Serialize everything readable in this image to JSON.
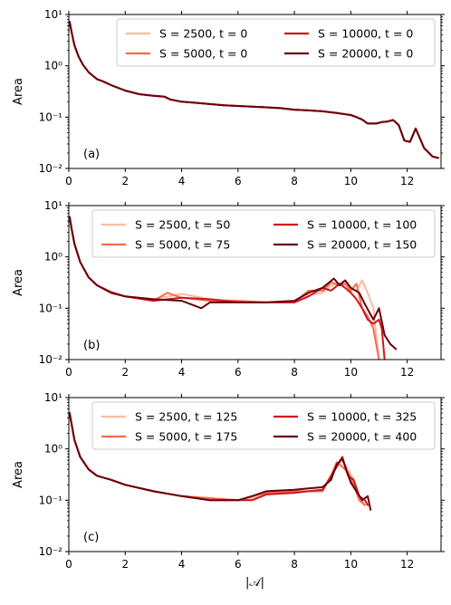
{
  "chart_data": [
    {
      "type": "line",
      "panel_label": "(a)",
      "ylabel": "Area",
      "xlabel": "",
      "yscale": "log",
      "xlim": [
        0,
        13.2
      ],
      "ylim": [
        0.01,
        10
      ],
      "xticks": [
        0,
        2,
        4,
        6,
        8,
        10,
        12
      ],
      "xtick_labels": [
        "0",
        "2",
        "4",
        "6",
        "8",
        "10",
        "12"
      ],
      "ytick_labels": [
        "10⁻²",
        "10⁻¹",
        "10⁰",
        "10¹"
      ],
      "legend": "top-right, 2 columns",
      "series": [
        {
          "name": "S = 2500, t = 0",
          "color": "#fcbba1",
          "x": [
            0.03,
            0.1,
            0.2,
            0.35,
            0.5,
            0.7,
            1.0,
            1.2,
            1.5,
            2.0,
            2.5,
            3.0,
            3.4,
            3.6,
            4.0,
            4.5,
            5.0,
            5.5,
            6.0,
            6.5,
            7.0,
            7.5,
            8.0,
            8.5,
            9.0,
            9.5,
            10.0,
            10.2,
            10.4,
            10.6,
            10.9,
            11.1,
            11.3,
            11.5,
            11.7,
            11.9,
            12.1,
            12.3,
            12.6,
            12.9,
            13.1
          ],
          "y": [
            7.2,
            4.5,
            2.5,
            1.5,
            1.05,
            0.75,
            0.55,
            0.5,
            0.42,
            0.33,
            0.28,
            0.26,
            0.25,
            0.22,
            0.2,
            0.19,
            0.18,
            0.17,
            0.165,
            0.16,
            0.155,
            0.15,
            0.14,
            0.135,
            0.13,
            0.12,
            0.11,
            0.1,
            0.09,
            0.075,
            0.075,
            0.08,
            0.082,
            0.088,
            0.07,
            0.035,
            0.033,
            0.06,
            0.025,
            0.017,
            0.016
          ]
        },
        {
          "name": "S = 5000, t = 0",
          "color": "#fb6a4a",
          "x": [
            0.03,
            0.1,
            0.2,
            0.35,
            0.5,
            0.7,
            1.0,
            1.2,
            1.5,
            2.0,
            2.5,
            3.0,
            3.4,
            3.6,
            4.0,
            4.5,
            5.0,
            5.5,
            6.0,
            6.5,
            7.0,
            7.5,
            8.0,
            8.5,
            9.0,
            9.5,
            10.0,
            10.2,
            10.4,
            10.6,
            10.9,
            11.1,
            11.3,
            11.5,
            11.7,
            11.9,
            12.1,
            12.3,
            12.6,
            12.9,
            13.1
          ],
          "y": [
            7.2,
            4.5,
            2.5,
            1.5,
            1.05,
            0.75,
            0.55,
            0.5,
            0.42,
            0.33,
            0.28,
            0.26,
            0.25,
            0.22,
            0.2,
            0.19,
            0.18,
            0.17,
            0.165,
            0.16,
            0.155,
            0.15,
            0.14,
            0.135,
            0.13,
            0.12,
            0.11,
            0.1,
            0.09,
            0.075,
            0.075,
            0.08,
            0.082,
            0.088,
            0.07,
            0.035,
            0.033,
            0.06,
            0.025,
            0.017,
            0.016
          ]
        },
        {
          "name": "S = 10000, t = 0",
          "color": "#cb181d",
          "x": [
            0.03,
            0.1,
            0.2,
            0.35,
            0.5,
            0.7,
            1.0,
            1.2,
            1.5,
            2.0,
            2.5,
            3.0,
            3.4,
            3.6,
            4.0,
            4.5,
            5.0,
            5.5,
            6.0,
            6.5,
            7.0,
            7.5,
            8.0,
            8.5,
            9.0,
            9.5,
            10.0,
            10.2,
            10.4,
            10.6,
            10.9,
            11.1,
            11.3,
            11.5,
            11.7,
            11.9,
            12.1,
            12.3,
            12.6,
            12.9,
            13.1
          ],
          "y": [
            7.2,
            4.5,
            2.5,
            1.5,
            1.05,
            0.75,
            0.55,
            0.5,
            0.42,
            0.33,
            0.28,
            0.26,
            0.25,
            0.22,
            0.2,
            0.19,
            0.18,
            0.17,
            0.165,
            0.16,
            0.155,
            0.15,
            0.14,
            0.135,
            0.13,
            0.12,
            0.11,
            0.1,
            0.09,
            0.075,
            0.075,
            0.08,
            0.082,
            0.088,
            0.07,
            0.035,
            0.033,
            0.06,
            0.025,
            0.017,
            0.016
          ]
        },
        {
          "name": "S = 20000, t = 0",
          "color": "#67000d",
          "x": [
            0.03,
            0.1,
            0.2,
            0.35,
            0.5,
            0.7,
            1.0,
            1.2,
            1.5,
            2.0,
            2.5,
            3.0,
            3.4,
            3.6,
            4.0,
            4.5,
            5.0,
            5.5,
            6.0,
            6.5,
            7.0,
            7.5,
            8.0,
            8.5,
            9.0,
            9.5,
            10.0,
            10.2,
            10.4,
            10.6,
            10.9,
            11.1,
            11.3,
            11.5,
            11.7,
            11.9,
            12.1,
            12.3,
            12.6,
            12.9,
            13.1
          ],
          "y": [
            7.2,
            4.5,
            2.5,
            1.5,
            1.05,
            0.75,
            0.55,
            0.5,
            0.42,
            0.33,
            0.28,
            0.26,
            0.25,
            0.22,
            0.2,
            0.19,
            0.18,
            0.17,
            0.165,
            0.16,
            0.155,
            0.15,
            0.14,
            0.135,
            0.13,
            0.12,
            0.11,
            0.1,
            0.09,
            0.075,
            0.075,
            0.08,
            0.082,
            0.088,
            0.07,
            0.035,
            0.033,
            0.06,
            0.025,
            0.017,
            0.016
          ]
        }
      ]
    },
    {
      "type": "line",
      "panel_label": "(b)",
      "ylabel": "Area",
      "xlabel": "",
      "yscale": "log",
      "xlim": [
        0,
        13.2
      ],
      "ylim": [
        0.01,
        10
      ],
      "xticks": [
        0,
        2,
        4,
        6,
        8,
        10,
        12
      ],
      "xtick_labels": [
        "0",
        "2",
        "4",
        "6",
        "8",
        "10",
        "12"
      ],
      "ytick_labels": [
        "10⁻²",
        "10⁻¹",
        "10⁰",
        "10¹"
      ],
      "legend": "top-right, 2 columns",
      "series": [
        {
          "name": "S = 2500, t = 50",
          "color": "#fcbba1",
          "x": [
            0.03,
            0.1,
            0.2,
            0.4,
            0.7,
            1.0,
            1.5,
            2.0,
            3.0,
            4.0,
            5.0,
            6.0,
            7.0,
            8.0,
            8.5,
            9.0,
            9.3,
            9.6,
            9.8,
            10.0,
            10.2,
            10.4,
            10.6,
            10.8,
            10.9,
            11.0
          ],
          "y": [
            6.0,
            3.5,
            1.8,
            0.8,
            0.4,
            0.28,
            0.2,
            0.17,
            0.15,
            0.19,
            0.15,
            0.14,
            0.13,
            0.13,
            0.18,
            0.2,
            0.28,
            0.3,
            0.35,
            0.25,
            0.22,
            0.35,
            0.2,
            0.1,
            0.03,
            0.01
          ]
        },
        {
          "name": "S = 5000, t = 75",
          "color": "#fb6a4a",
          "x": [
            0.03,
            0.1,
            0.2,
            0.4,
            0.7,
            1.0,
            1.5,
            2.0,
            3.0,
            3.5,
            4.0,
            5.0,
            6.0,
            7.0,
            8.0,
            8.5,
            9.0,
            9.3,
            9.6,
            9.8,
            10.0,
            10.2,
            10.4,
            10.6,
            10.8,
            11.0
          ],
          "y": [
            6.0,
            3.5,
            1.8,
            0.8,
            0.4,
            0.28,
            0.21,
            0.17,
            0.14,
            0.2,
            0.16,
            0.14,
            0.14,
            0.13,
            0.13,
            0.22,
            0.22,
            0.32,
            0.28,
            0.3,
            0.22,
            0.3,
            0.1,
            0.07,
            0.04,
            0.01
          ]
        },
        {
          "name": "S = 10000, t = 100",
          "color": "#cb181d",
          "x": [
            0.03,
            0.1,
            0.2,
            0.4,
            0.7,
            1.0,
            1.5,
            2.0,
            3.0,
            4.0,
            5.0,
            6.0,
            7.0,
            8.0,
            8.5,
            9.0,
            9.3,
            9.6,
            9.8,
            10.0,
            10.2,
            10.4,
            10.6,
            10.8,
            11.0,
            11.1,
            11.2
          ],
          "y": [
            6.0,
            3.5,
            1.8,
            0.8,
            0.4,
            0.28,
            0.2,
            0.17,
            0.14,
            0.16,
            0.15,
            0.13,
            0.13,
            0.13,
            0.17,
            0.25,
            0.22,
            0.3,
            0.25,
            0.2,
            0.15,
            0.1,
            0.06,
            0.05,
            0.06,
            0.04,
            0.01
          ]
        },
        {
          "name": "S = 20000, t = 150",
          "color": "#67000d",
          "x": [
            0.03,
            0.1,
            0.2,
            0.4,
            0.7,
            1.0,
            1.5,
            2.0,
            3.0,
            4.0,
            4.7,
            5.0,
            6.0,
            7.0,
            8.0,
            8.5,
            9.0,
            9.4,
            9.6,
            9.8,
            10.0,
            10.3,
            10.5,
            10.8,
            11.0,
            11.2,
            11.4,
            11.6
          ],
          "y": [
            6.0,
            3.5,
            1.8,
            0.8,
            0.4,
            0.28,
            0.2,
            0.17,
            0.15,
            0.14,
            0.1,
            0.13,
            0.13,
            0.13,
            0.14,
            0.2,
            0.25,
            0.38,
            0.28,
            0.35,
            0.25,
            0.2,
            0.12,
            0.06,
            0.1,
            0.03,
            0.02,
            0.016
          ]
        }
      ]
    },
    {
      "type": "line",
      "panel_label": "(c)",
      "ylabel": "Area",
      "xlabel": "|𝒜|",
      "yscale": "log",
      "xlim": [
        0,
        13.2
      ],
      "ylim": [
        0.01,
        10
      ],
      "xticks": [
        0,
        2,
        4,
        6,
        8,
        10,
        12
      ],
      "xtick_labels": [
        "0",
        "2",
        "4",
        "6",
        "8",
        "10",
        "12"
      ],
      "ytick_labels": [
        "10⁻²",
        "10⁻¹",
        "10⁰",
        "10¹"
      ],
      "legend": "top-right, 2 columns",
      "series": [
        {
          "name": "S = 2500, t = 125",
          "color": "#fcbba1",
          "x": [
            0.03,
            0.1,
            0.2,
            0.4,
            0.7,
            1.0,
            1.5,
            2.0,
            3.0,
            4.0,
            5.0,
            6.0,
            6.5,
            7.0,
            8.0,
            8.5,
            9.0,
            9.3,
            9.5,
            9.7,
            9.9,
            10.1,
            10.3,
            10.5
          ],
          "y": [
            5.0,
            3.0,
            1.5,
            0.7,
            0.4,
            0.3,
            0.25,
            0.2,
            0.15,
            0.12,
            0.11,
            0.1,
            0.11,
            0.13,
            0.14,
            0.15,
            0.16,
            0.28,
            0.45,
            0.6,
            0.4,
            0.25,
            0.12,
            0.08
          ]
        },
        {
          "name": "S = 5000, t = 175",
          "color": "#fb6a4a",
          "x": [
            0.03,
            0.1,
            0.2,
            0.4,
            0.7,
            1.0,
            1.5,
            2.0,
            3.0,
            4.0,
            5.0,
            6.0,
            6.5,
            7.0,
            8.0,
            8.5,
            9.0,
            9.3,
            9.5,
            9.7,
            9.9,
            10.1,
            10.3,
            10.5
          ],
          "y": [
            5.0,
            3.0,
            1.5,
            0.7,
            0.4,
            0.3,
            0.25,
            0.2,
            0.15,
            0.12,
            0.11,
            0.1,
            0.12,
            0.14,
            0.15,
            0.15,
            0.15,
            0.3,
            0.55,
            0.45,
            0.35,
            0.2,
            0.1,
            0.08
          ]
        },
        {
          "name": "S = 10000, t = 325",
          "color": "#cb181d",
          "x": [
            0.03,
            0.1,
            0.2,
            0.4,
            0.7,
            1.0,
            1.5,
            2.0,
            3.0,
            4.0,
            5.0,
            6.0,
            6.5,
            7.0,
            8.0,
            8.5,
            9.0,
            9.3,
            9.5,
            9.7,
            9.9,
            10.1,
            10.3,
            10.5,
            10.6
          ],
          "y": [
            5.0,
            3.0,
            1.5,
            0.7,
            0.4,
            0.3,
            0.25,
            0.2,
            0.15,
            0.12,
            0.1,
            0.1,
            0.1,
            0.13,
            0.14,
            0.15,
            0.16,
            0.3,
            0.45,
            0.7,
            0.3,
            0.25,
            0.12,
            0.1,
            0.08
          ]
        },
        {
          "name": "S = 20000, t = 400",
          "color": "#67000d",
          "x": [
            0.03,
            0.1,
            0.2,
            0.4,
            0.7,
            1.0,
            1.5,
            2.0,
            3.0,
            4.0,
            5.0,
            6.0,
            6.5,
            7.0,
            8.0,
            8.5,
            9.0,
            9.3,
            9.5,
            9.7,
            9.8,
            10.0,
            10.2,
            10.4,
            10.6,
            10.7
          ],
          "y": [
            5.0,
            3.0,
            1.5,
            0.7,
            0.4,
            0.3,
            0.25,
            0.2,
            0.15,
            0.12,
            0.1,
            0.1,
            0.12,
            0.15,
            0.16,
            0.17,
            0.18,
            0.25,
            0.5,
            0.65,
            0.45,
            0.22,
            0.15,
            0.1,
            0.12,
            0.065
          ]
        }
      ]
    }
  ]
}
